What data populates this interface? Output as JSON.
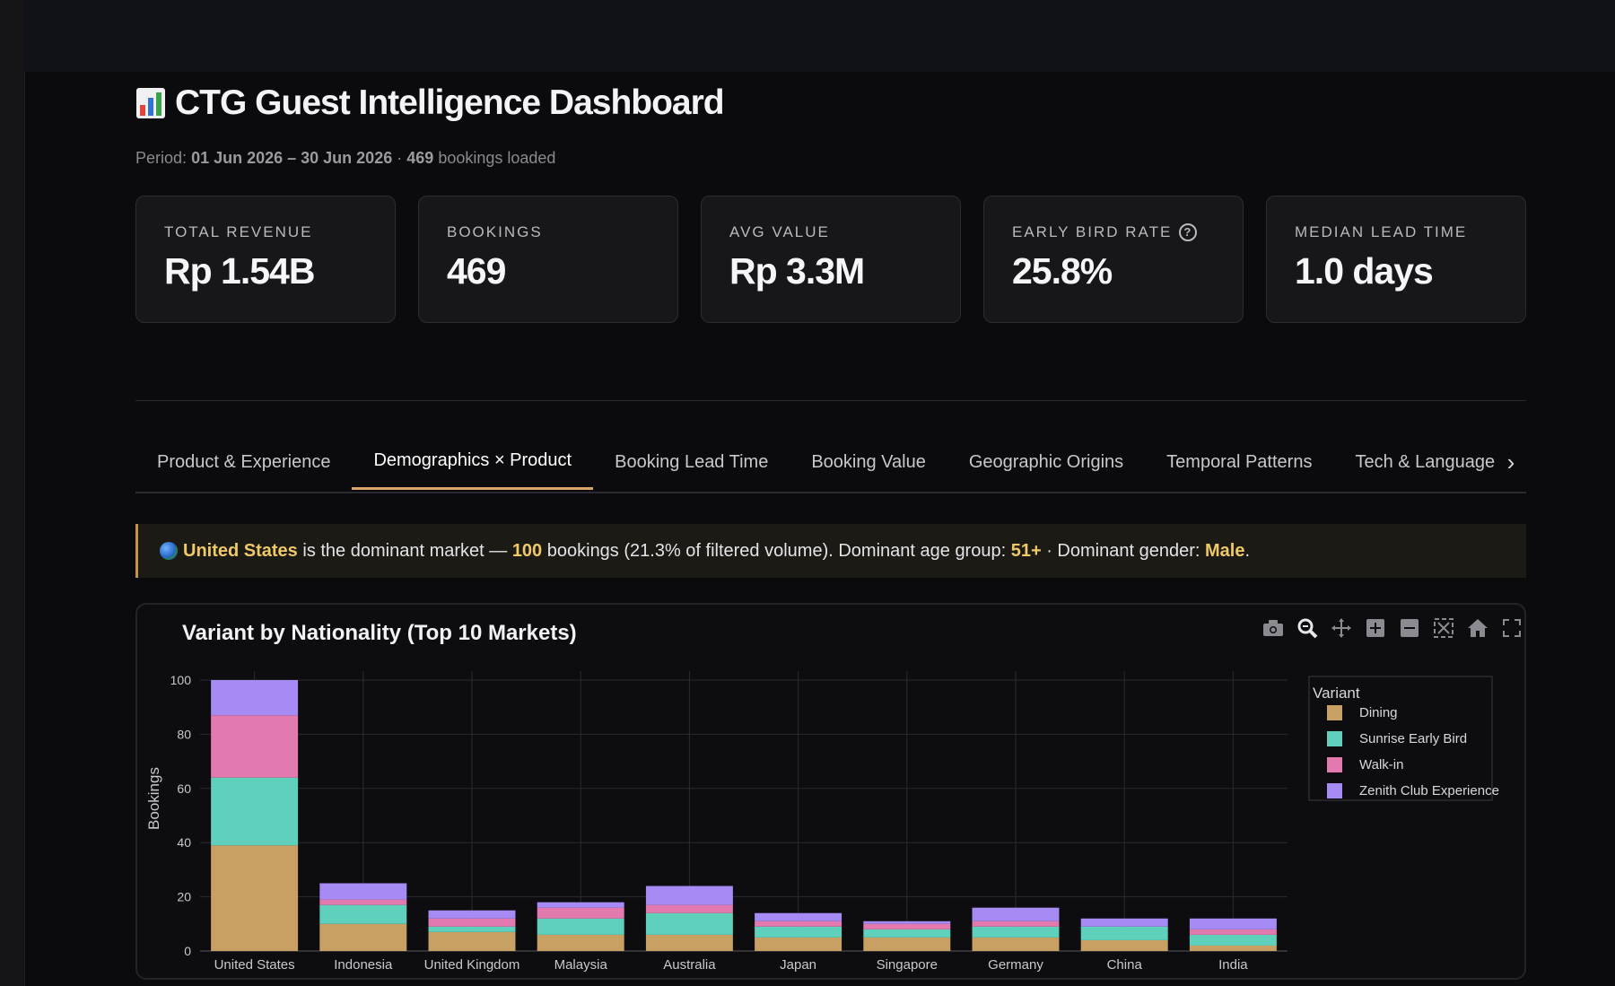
{
  "header": {
    "title": "CTG Guest Intelligence Dashboard",
    "period_label": "Period:",
    "period_range": "01 Jun 2026 – 30 Jun 2026",
    "period_sep": "·",
    "bookings_count": "469",
    "bookings_suffix": "bookings loaded"
  },
  "kpis": [
    {
      "label": "TOTAL REVENUE",
      "value": "Rp 1.54B"
    },
    {
      "label": "BOOKINGS",
      "value": "469"
    },
    {
      "label": "AVG VALUE",
      "value": "Rp 3.3M"
    },
    {
      "label": "EARLY BIRD RATE",
      "value": "25.8%",
      "help_icon": "question-circle-icon"
    },
    {
      "label": "MEDIAN LEAD TIME",
      "value": "1.0 days"
    }
  ],
  "tabs": [
    "Product & Experience",
    "Demographics × Product",
    "Booking Lead Time",
    "Booking Value",
    "Geographic Origins",
    "Temporal Patterns",
    "Tech & Language"
  ],
  "active_tab": "Demographics × Product",
  "insight": {
    "country": "United States",
    "t1": "is the dominant market —",
    "count": "100",
    "t2": "bookings (21.3% of filtered volume). Dominant age group:",
    "age": "51+",
    "t3": "· Dominant gender:",
    "gender": "Male",
    "t4": "."
  },
  "colors": {
    "accent": "#d9a56a",
    "Dining": "#c9a063",
    "Sunrise Early Bird": "#5fd0bc",
    "Walk-in": "#e37aaf",
    "Zenith Club Experience": "#a78bf5"
  },
  "modebar_icons": [
    "camera-icon",
    "zoom-icon",
    "pan-icon",
    "zoom-in-icon",
    "zoom-out-icon",
    "autoscale-icon",
    "reset-axes-icon",
    "fullscreen-icon"
  ],
  "chart_data": {
    "type": "bar",
    "stacked": true,
    "title": "Variant by Nationality (Top 10 Markets)",
    "ylabel": "Bookings",
    "xlabel": "",
    "ylim": [
      0,
      100
    ],
    "yticks": [
      0,
      20,
      40,
      60,
      80,
      100
    ],
    "grid": true,
    "legend_title": "Variant",
    "legend_position": "right",
    "categories": [
      "United States",
      "Indonesia",
      "United Kingdom",
      "Malaysia",
      "Australia",
      "Japan",
      "Singapore",
      "Germany",
      "China",
      "India"
    ],
    "series": [
      {
        "name": "Dining",
        "values": [
          39,
          10,
          7,
          6,
          6,
          5,
          5,
          5,
          4,
          2
        ]
      },
      {
        "name": "Sunrise Early Bird",
        "values": [
          25,
          7,
          2,
          6,
          8,
          4,
          3,
          4,
          5,
          4
        ]
      },
      {
        "name": "Walk-in",
        "values": [
          23,
          2,
          3,
          4,
          3,
          2,
          2,
          2,
          0,
          2
        ]
      },
      {
        "name": "Zenith Club Experience",
        "values": [
          13,
          6,
          3,
          2,
          7,
          3,
          1,
          5,
          3,
          4
        ]
      }
    ]
  }
}
